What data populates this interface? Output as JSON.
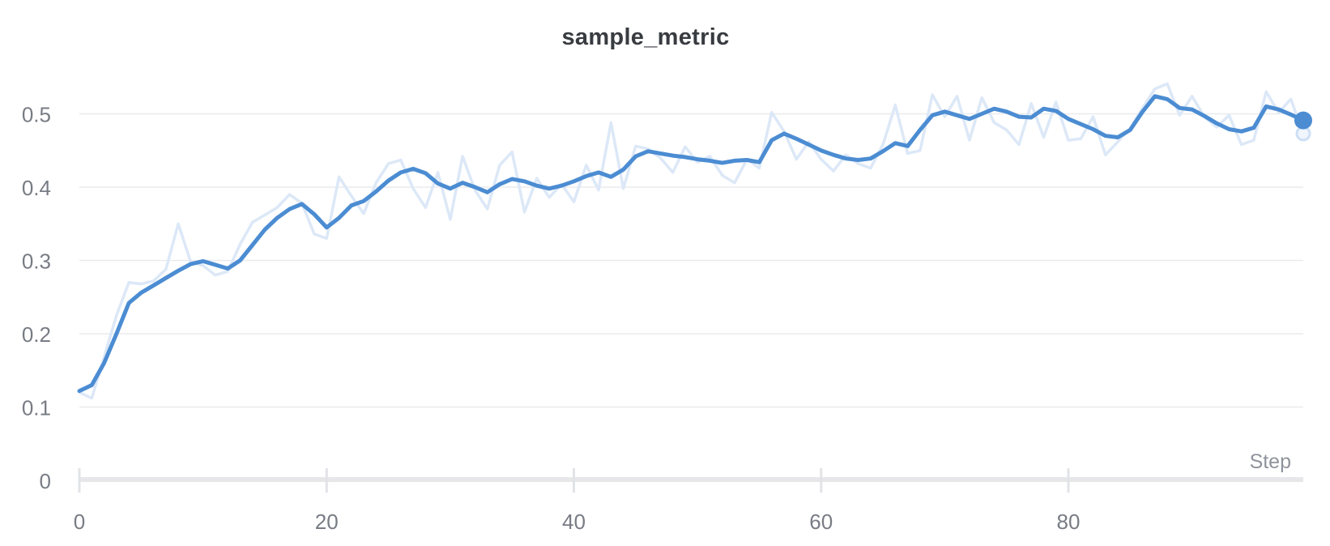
{
  "chart_data": {
    "type": "line",
    "title": "sample_metric",
    "xlabel": "Step",
    "ylabel": "",
    "x_ticks": [
      0,
      20,
      40,
      60,
      80
    ],
    "y_ticks": [
      0,
      0.1,
      0.2,
      0.3,
      0.4,
      0.5
    ],
    "y_tick_labels": [
      "0",
      "0.1",
      "0.2",
      "0.3",
      "0.4",
      "0.5"
    ],
    "xlim": [
      0,
      99
    ],
    "ylim": [
      0,
      0.545
    ],
    "grid": "horizontal",
    "legend": "none",
    "x_start": 0,
    "x_step": 1,
    "colors": {
      "smoothed_line": "#4b8cd2",
      "raw_line": "#dce8f7",
      "end_dot": "#4b8cd2",
      "raw_end_ring_stroke": "#cddff5",
      "raw_end_ring_fill": "#f0f6fd",
      "gridline": "#eaebed",
      "axis_bar": "#e7e7ea",
      "tick_mark": "#e2e3e7",
      "tick_text": "#787c84",
      "xlabel_text": "#8f939b",
      "title_text": "#383b40"
    },
    "series": [
      {
        "name": "raw",
        "width": 3.5,
        "values": [
          0.12,
          0.112,
          0.168,
          0.225,
          0.27,
          0.268,
          0.272,
          0.288,
          0.35,
          0.298,
          0.293,
          0.28,
          0.285,
          0.322,
          0.352,
          0.362,
          0.372,
          0.39,
          0.378,
          0.336,
          0.33,
          0.414,
          0.388,
          0.364,
          0.406,
          0.432,
          0.437,
          0.398,
          0.372,
          0.42,
          0.356,
          0.442,
          0.396,
          0.37,
          0.43,
          0.448,
          0.366,
          0.412,
          0.386,
          0.404,
          0.38,
          0.43,
          0.396,
          0.488,
          0.398,
          0.456,
          0.452,
          0.44,
          0.42,
          0.455,
          0.434,
          0.442,
          0.416,
          0.406,
          0.438,
          0.426,
          0.502,
          0.476,
          0.438,
          0.462,
          0.438,
          0.422,
          0.444,
          0.432,
          0.426,
          0.458,
          0.512,
          0.446,
          0.45,
          0.526,
          0.496,
          0.524,
          0.464,
          0.522,
          0.488,
          0.478,
          0.458,
          0.514,
          0.468,
          0.516,
          0.464,
          0.466,
          0.496,
          0.444,
          0.462,
          0.48,
          0.508,
          0.534,
          0.541,
          0.498,
          0.524,
          0.496,
          0.482,
          0.498,
          0.458,
          0.464,
          0.53,
          0.502,
          0.52,
          0.473
        ]
      },
      {
        "name": "smoothed",
        "width": 5,
        "values": [
          0.122,
          0.13,
          0.16,
          0.2,
          0.242,
          0.256,
          0.266,
          0.276,
          0.286,
          0.295,
          0.299,
          0.294,
          0.289,
          0.3,
          0.321,
          0.342,
          0.358,
          0.37,
          0.377,
          0.363,
          0.345,
          0.358,
          0.375,
          0.381,
          0.394,
          0.409,
          0.42,
          0.425,
          0.419,
          0.405,
          0.398,
          0.406,
          0.4,
          0.393,
          0.404,
          0.411,
          0.408,
          0.402,
          0.398,
          0.402,
          0.408,
          0.415,
          0.42,
          0.414,
          0.424,
          0.442,
          0.449,
          0.446,
          0.443,
          0.441,
          0.438,
          0.436,
          0.433,
          0.436,
          0.437,
          0.434,
          0.464,
          0.473,
          0.466,
          0.458,
          0.45,
          0.444,
          0.439,
          0.437,
          0.439,
          0.449,
          0.46,
          0.456,
          0.478,
          0.498,
          0.503,
          0.498,
          0.493,
          0.5,
          0.507,
          0.503,
          0.496,
          0.495,
          0.507,
          0.504,
          0.493,
          0.486,
          0.479,
          0.47,
          0.468,
          0.478,
          0.503,
          0.524,
          0.52,
          0.508,
          0.506,
          0.497,
          0.487,
          0.479,
          0.476,
          0.481,
          0.51,
          0.506,
          0.499,
          0.491
        ]
      }
    ],
    "end_markers": {
      "smoothed_dot_radius": 11,
      "raw_ring_radius": 8,
      "raw_ring_stroke_width": 3
    }
  }
}
